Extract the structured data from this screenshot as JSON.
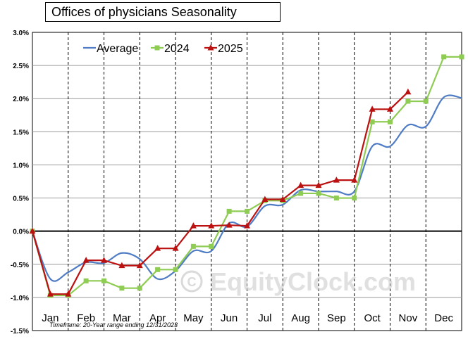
{
  "chart_data": {
    "type": "line",
    "title": "Offices of physicians Seasonality",
    "footnote": "Timeframe: 20-Year range ending 12/31/2023",
    "watermark": "EquityClock.com",
    "ylim": [
      -1.5,
      3.0
    ],
    "y_ticks": [
      "3.0%",
      "2.5%",
      "2.0%",
      "1.5%",
      "1.0%",
      "0.5%",
      "0.0%",
      "-0.5%",
      "-1.0%",
      "-1.5%"
    ],
    "categories": [
      "Jan",
      "Feb",
      "Mar",
      "Apr",
      "May",
      "Jun",
      "Jul",
      "Aug",
      "Sep",
      "Oct",
      "Nov",
      "Dec"
    ],
    "grid": true,
    "legend_position": "top-left",
    "series": [
      {
        "name": "Average",
        "color": "#4f7cc4",
        "marker": "none",
        "smooth": true,
        "points": [
          [
            0.0,
            0.0
          ],
          [
            0.5,
            -0.72
          ],
          [
            1.0,
            -0.62
          ],
          [
            1.5,
            -0.47
          ],
          [
            2.0,
            -0.48
          ],
          [
            2.5,
            -0.33
          ],
          [
            3.0,
            -0.42
          ],
          [
            3.5,
            -0.72
          ],
          [
            4.0,
            -0.6
          ],
          [
            4.5,
            -0.3
          ],
          [
            5.0,
            -0.3
          ],
          [
            5.5,
            0.12
          ],
          [
            6.0,
            0.07
          ],
          [
            6.5,
            0.38
          ],
          [
            7.0,
            0.4
          ],
          [
            7.5,
            0.62
          ],
          [
            8.0,
            0.6
          ],
          [
            8.5,
            0.6
          ],
          [
            9.0,
            0.6
          ],
          [
            9.5,
            1.28
          ],
          [
            10.0,
            1.28
          ],
          [
            10.5,
            1.6
          ],
          [
            11.0,
            1.58
          ],
          [
            11.5,
            2.02
          ],
          [
            12.0,
            2.01
          ]
        ]
      },
      {
        "name": "2024",
        "color": "#8fcc53",
        "marker": "square",
        "points": [
          [
            0.0,
            0.0
          ],
          [
            0.5,
            -0.97
          ],
          [
            1.0,
            -0.97
          ],
          [
            1.5,
            -0.75
          ],
          [
            2.0,
            -0.75
          ],
          [
            2.5,
            -0.86
          ],
          [
            3.0,
            -0.86
          ],
          [
            3.5,
            -0.58
          ],
          [
            4.0,
            -0.58
          ],
          [
            4.5,
            -0.23
          ],
          [
            5.0,
            -0.23
          ],
          [
            5.5,
            0.3
          ],
          [
            6.0,
            0.3
          ],
          [
            6.5,
            0.46
          ],
          [
            7.0,
            0.46
          ],
          [
            7.5,
            0.57
          ],
          [
            8.0,
            0.57
          ],
          [
            8.5,
            0.5
          ],
          [
            9.0,
            0.5
          ],
          [
            9.5,
            1.65
          ],
          [
            10.0,
            1.65
          ],
          [
            10.5,
            1.96
          ],
          [
            11.0,
            1.96
          ],
          [
            11.5,
            2.63
          ],
          [
            12.0,
            2.63
          ]
        ]
      },
      {
        "name": "2025",
        "color": "#bb1111",
        "marker": "triangle",
        "points": [
          [
            0.0,
            0.0
          ],
          [
            0.5,
            -0.95
          ],
          [
            1.0,
            -0.95
          ],
          [
            1.5,
            -0.44
          ],
          [
            2.0,
            -0.44
          ],
          [
            2.5,
            -0.52
          ],
          [
            3.0,
            -0.52
          ],
          [
            3.5,
            -0.26
          ],
          [
            4.0,
            -0.26
          ],
          [
            4.5,
            0.08
          ],
          [
            5.0,
            0.08
          ],
          [
            5.5,
            0.09
          ],
          [
            6.0,
            0.08
          ],
          [
            6.5,
            0.48
          ],
          [
            7.0,
            0.48
          ],
          [
            7.5,
            0.69
          ],
          [
            8.0,
            0.69
          ],
          [
            8.5,
            0.77
          ],
          [
            9.0,
            0.77
          ],
          [
            9.5,
            1.84
          ],
          [
            10.0,
            1.84
          ],
          [
            10.5,
            2.1
          ]
        ]
      }
    ]
  }
}
